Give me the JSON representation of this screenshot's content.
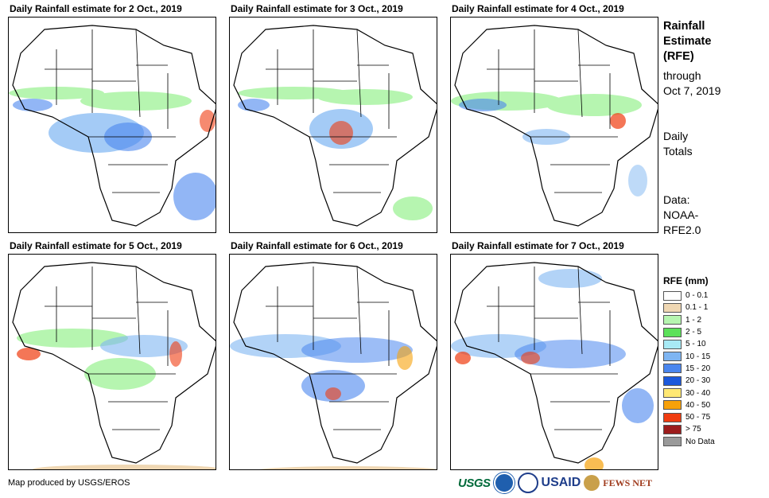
{
  "panels": [
    {
      "title": "Daily Rainfall estimate for 2 Oct., 2019"
    },
    {
      "title": "Daily Rainfall estimate for 3 Oct., 2019"
    },
    {
      "title": "Daily Rainfall estimate for 4 Oct., 2019"
    },
    {
      "title": "Daily Rainfall estimate for 5 Oct., 2019"
    },
    {
      "title": "Daily Rainfall estimate for 6 Oct., 2019"
    },
    {
      "title": "Daily Rainfall estimate for 7 Oct., 2019"
    }
  ],
  "side": {
    "heading": [
      "Rainfall",
      "Estimate",
      "(RFE)"
    ],
    "through": [
      "through",
      "Oct 7, 2019"
    ],
    "totals": [
      "Daily",
      "Totals"
    ],
    "source": [
      "Data:",
      "NOAA-",
      "RFE2.0"
    ]
  },
  "legend": {
    "title": "RFE (mm)",
    "items": [
      {
        "label": "0 - 0.1",
        "color": "#ffffff"
      },
      {
        "label": "0.1 - 1",
        "color": "#efd7b3"
      },
      {
        "label": "1 - 2",
        "color": "#b6f5b0"
      },
      {
        "label": "2 - 5",
        "color": "#5ce15a"
      },
      {
        "label": "5 - 10",
        "color": "#a8eaf5"
      },
      {
        "label": "10 - 15",
        "color": "#7eb5f2"
      },
      {
        "label": "15 - 20",
        "color": "#4a86ee"
      },
      {
        "label": "20 - 30",
        "color": "#1c59dc"
      },
      {
        "label": "30 - 40",
        "color": "#ffe873"
      },
      {
        "label": "40 - 50",
        "color": "#f7a10a"
      },
      {
        "label": "50 - 75",
        "color": "#f03c10"
      },
      {
        "label": "> 75",
        "color": "#9c1c1c"
      },
      {
        "label": "No Data",
        "color": "#9a9a9a"
      }
    ]
  },
  "credit": "Map produced by USGS/EROS",
  "logos": {
    "usgs": "USGS",
    "usaid": "USAID",
    "fews": "FEWS NET"
  }
}
